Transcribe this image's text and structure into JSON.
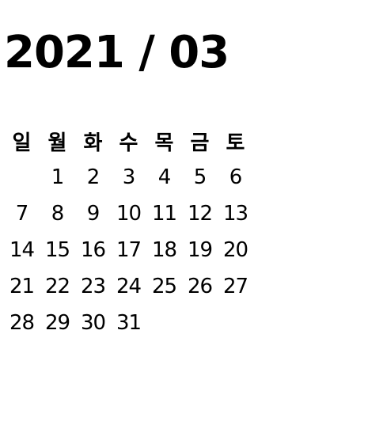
{
  "calendar": {
    "title": "2021 / 03",
    "weekdays": [
      "일",
      "월",
      "화",
      "수",
      "목",
      "금",
      "토"
    ],
    "weeks": [
      [
        "",
        "1",
        "2",
        "3",
        "4",
        "5",
        "6"
      ],
      [
        "7",
        "8",
        "9",
        "10",
        "11",
        "12",
        "13"
      ],
      [
        "14",
        "15",
        "16",
        "17",
        "18",
        "19",
        "20"
      ],
      [
        "21",
        "22",
        "23",
        "24",
        "25",
        "26",
        "27"
      ],
      [
        "28",
        "29",
        "30",
        "31",
        "",
        "",
        ""
      ]
    ]
  }
}
